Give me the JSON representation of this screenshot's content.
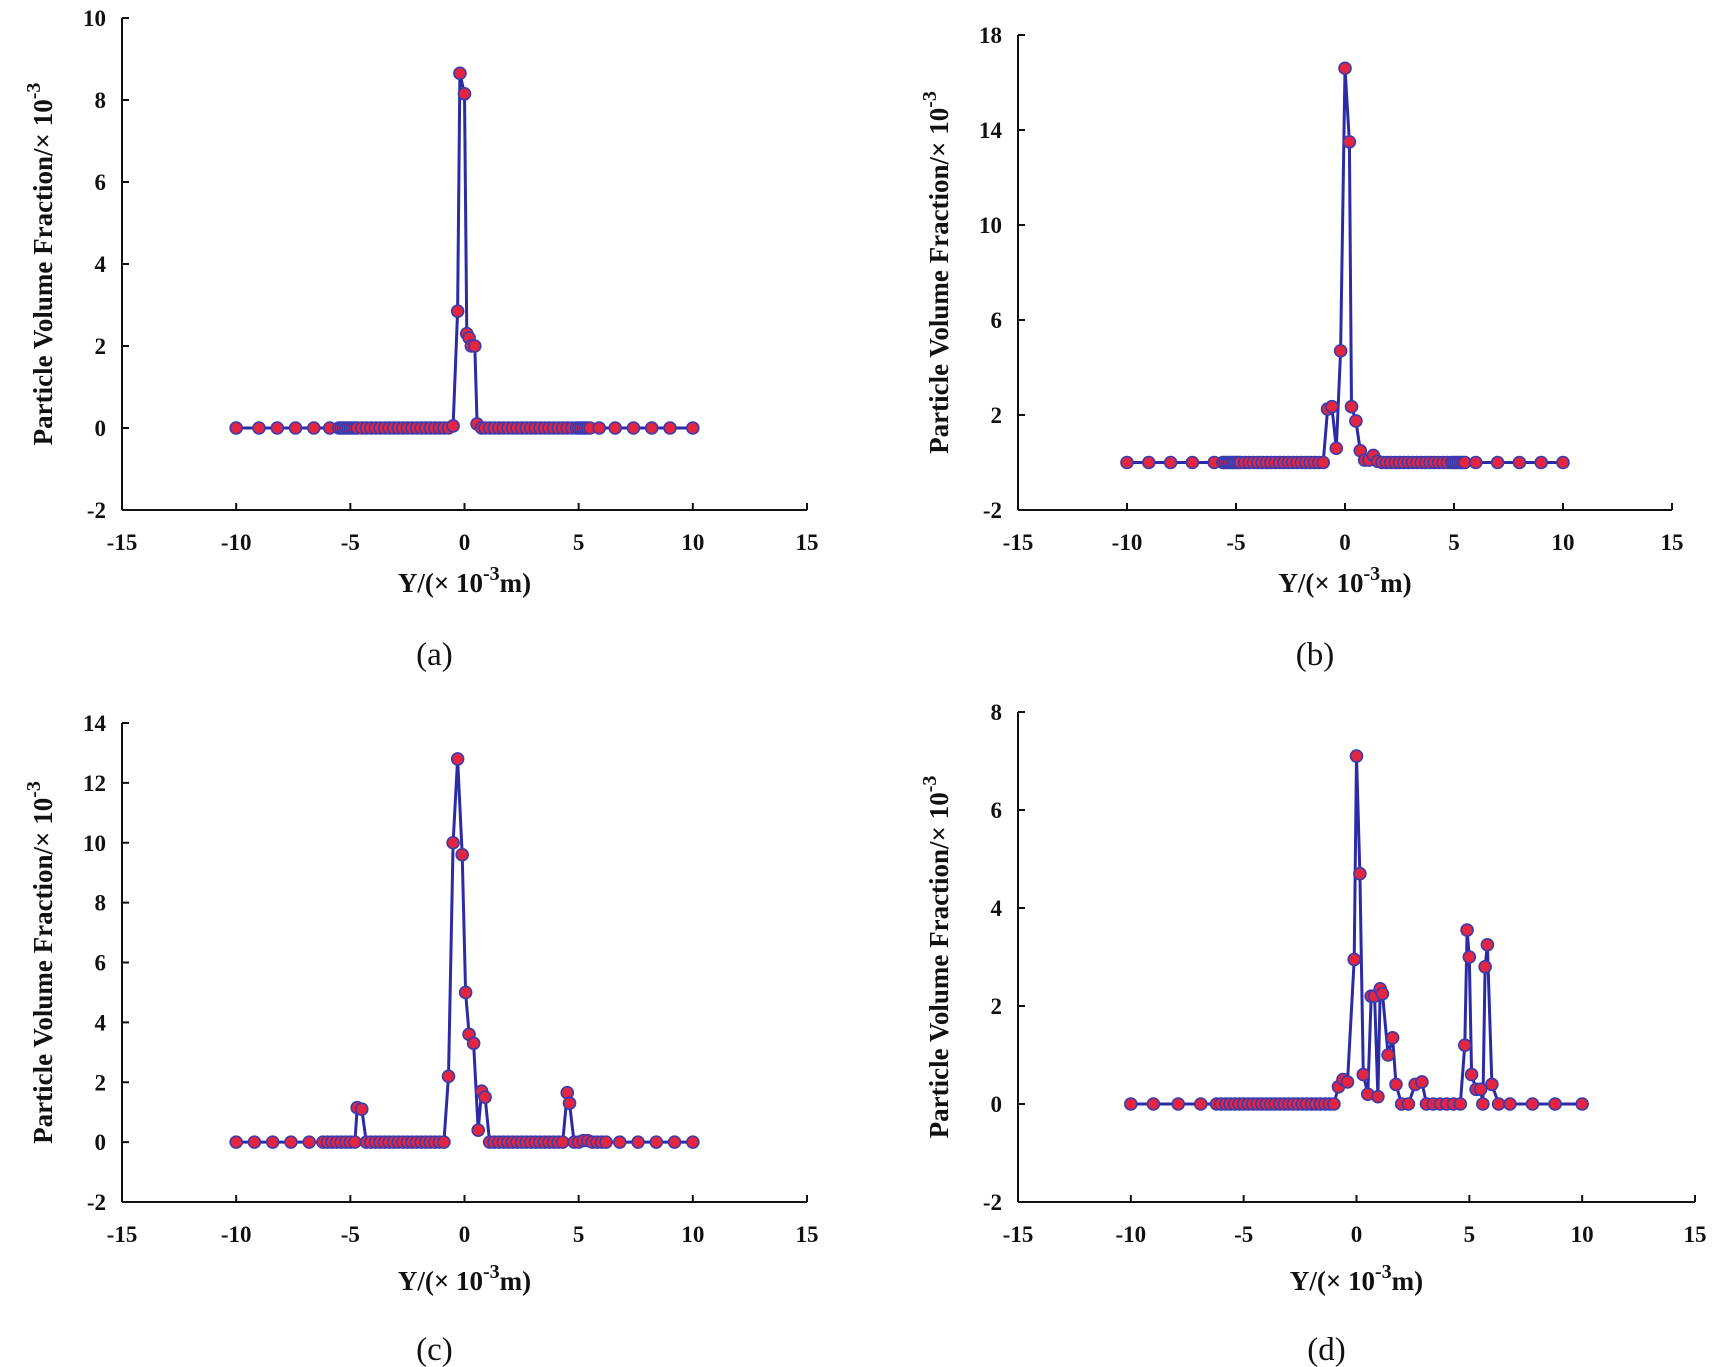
{
  "colors": {
    "line": "#2b2ba6",
    "marker_fill": "#e4253f",
    "marker_edge": "#3b3bb0",
    "axis": "#111111"
  },
  "chart_data": [
    {
      "type": "line",
      "caption": "(a)",
      "xlabel": "Y/(× 10-3m)",
      "xlabel_main": "Y/(× 10",
      "xlabel_exp": "-3",
      "xlabel_unit": "m)",
      "ylabel": "Particle Volume Fraction/× 10-3",
      "ylabel_main": "Particle Volume Fraction/× 10",
      "ylabel_exp": "-3",
      "xlim": [
        -15,
        15
      ],
      "ylim": [
        -2,
        10
      ],
      "xticks": [
        -15,
        -10,
        -5,
        0,
        5,
        10,
        15
      ],
      "yticks": [
        -2,
        0,
        2,
        4,
        6,
        8,
        10
      ],
      "x": [
        -10,
        -9,
        -8.2,
        -7.4,
        -6.6,
        -5.9,
        -5.5,
        -5.4,
        -5.3,
        -5.2,
        -5.1,
        -5.0,
        -4.9,
        -4.8,
        -4.7,
        -4.5,
        -4.3,
        -4.1,
        -3.9,
        -3.7,
        -3.5,
        -3.3,
        -3.1,
        -2.9,
        -2.7,
        -2.5,
        -2.3,
        -2.1,
        -1.9,
        -1.7,
        -1.5,
        -1.3,
        -1.1,
        -0.9,
        -0.7,
        -0.5,
        -0.3,
        -0.2,
        0,
        0.1,
        0.2,
        0.3,
        0.45,
        0.55,
        0.75,
        0.9,
        1.1,
        1.3,
        1.5,
        1.7,
        1.9,
        2.1,
        2.3,
        2.5,
        2.7,
        2.9,
        3.1,
        3.3,
        3.5,
        3.7,
        3.9,
        4.1,
        4.3,
        4.5,
        4.7,
        4.9,
        5.0,
        5.1,
        5.2,
        5.3,
        5.4,
        5.5,
        5.9,
        6.6,
        7.4,
        8.2,
        9,
        10
      ],
      "values": [
        0,
        0,
        0,
        0,
        0,
        0,
        0,
        0,
        0,
        0,
        0,
        0,
        0,
        0,
        0,
        0,
        0,
        0,
        0,
        0,
        0,
        0,
        0,
        0,
        0,
        0,
        0,
        0,
        0,
        0,
        0,
        0,
        0,
        0,
        0,
        0.05,
        2.85,
        8.65,
        8.15,
        2.3,
        2.2,
        2.0,
        2.0,
        0.1,
        0,
        0,
        0,
        0,
        0,
        0,
        0,
        0,
        0,
        0,
        0,
        0,
        0,
        0,
        0,
        0,
        0,
        0,
        0,
        0,
        0,
        0,
        0,
        0,
        0,
        0,
        0,
        0,
        0,
        0,
        0,
        0,
        0,
        0
      ]
    },
    {
      "type": "line",
      "caption": "(b)",
      "xlabel": "Y/(× 10-3m)",
      "xlabel_main": "Y/(× 10",
      "xlabel_exp": "-3",
      "xlabel_unit": "m)",
      "ylabel": "Particle Volume Fraction/× 10-3",
      "ylabel_main": "Particle Volume Fraction/× 10",
      "ylabel_exp": "-3",
      "xlim": [
        -15,
        15
      ],
      "ylim": [
        -2,
        18
      ],
      "xticks": [
        -15,
        -10,
        -5,
        0,
        5,
        10,
        15
      ],
      "yticks": [
        -2,
        2,
        6,
        10,
        14,
        18
      ],
      "x": [
        -10,
        -9,
        -8,
        -7,
        -6,
        -5.6,
        -5.5,
        -5.4,
        -5.3,
        -5.2,
        -5.1,
        -5.0,
        -4.9,
        -4.8,
        -4.6,
        -4.4,
        -4.2,
        -4.0,
        -3.8,
        -3.6,
        -3.4,
        -3.2,
        -3.0,
        -2.8,
        -2.6,
        -2.4,
        -2.2,
        -2.0,
        -1.8,
        -1.6,
        -1.4,
        -1.2,
        -1.0,
        -0.8,
        -0.6,
        -0.4,
        -0.2,
        0,
        0.2,
        0.3,
        0.5,
        0.7,
        0.9,
        1.1,
        1.3,
        1.5,
        1.7,
        1.9,
        2.1,
        2.3,
        2.5,
        2.7,
        2.9,
        3.1,
        3.3,
        3.5,
        3.7,
        3.9,
        4.1,
        4.3,
        4.5,
        4.7,
        4.9,
        5.0,
        5.1,
        5.2,
        5.3,
        5.4,
        5.5,
        6,
        7,
        8,
        9,
        10
      ],
      "values": [
        0,
        0,
        0,
        0,
        0,
        0,
        0,
        0,
        0,
        0,
        0,
        0,
        0,
        0,
        0,
        0,
        0,
        0,
        0,
        0,
        0,
        0,
        0,
        0,
        0,
        0,
        0,
        0,
        0,
        0,
        0,
        0,
        0,
        2.25,
        2.35,
        0.6,
        4.7,
        16.6,
        13.5,
        2.35,
        1.75,
        0.5,
        0.1,
        0.1,
        0.3,
        0.05,
        0,
        0,
        0,
        0,
        0,
        0,
        0,
        0,
        0,
        0,
        0,
        0,
        0,
        0,
        0,
        0,
        0,
        0,
        0,
        0,
        0,
        0,
        0,
        0,
        0,
        0,
        0,
        0
      ]
    },
    {
      "type": "line",
      "caption": "(c)",
      "xlabel": "Y/(× 10-3m)",
      "xlabel_main": "Y/(× 10",
      "xlabel_exp": "-3",
      "xlabel_unit": "m)",
      "ylabel": "Particle Volume Fraction/× 10-3",
      "ylabel_main": "Particle Volume Fraction/× 10",
      "ylabel_exp": "-3",
      "xlim": [
        -15,
        15
      ],
      "ylim": [
        -2,
        14
      ],
      "xticks": [
        -15,
        -10,
        -5,
        0,
        5,
        10,
        15
      ],
      "yticks": [
        -2,
        0,
        2,
        4,
        6,
        8,
        10,
        12,
        14
      ],
      "x": [
        -10,
        -9.2,
        -8.4,
        -7.6,
        -6.8,
        -6.2,
        -6.0,
        -5.8,
        -5.6,
        -5.4,
        -5.2,
        -5.0,
        -4.8,
        -4.7,
        -4.5,
        -4.3,
        -4.1,
        -3.9,
        -3.7,
        -3.5,
        -3.3,
        -3.1,
        -2.9,
        -2.7,
        -2.5,
        -2.3,
        -2.1,
        -1.9,
        -1.7,
        -1.5,
        -1.3,
        -1.1,
        -0.9,
        -0.7,
        -0.5,
        -0.3,
        -0.1,
        0.05,
        0.2,
        0.4,
        0.6,
        0.75,
        0.9,
        1.1,
        1.3,
        1.5,
        1.7,
        1.9,
        2.1,
        2.3,
        2.5,
        2.7,
        2.9,
        3.1,
        3.3,
        3.5,
        3.7,
        3.9,
        4.1,
        4.3,
        4.5,
        4.6,
        4.8,
        5.0,
        5.2,
        5.4,
        5.6,
        5.8,
        6.0,
        6.2,
        6.8,
        7.6,
        8.4,
        9.2,
        10
      ],
      "values": [
        0,
        0,
        0,
        0,
        0,
        0,
        0,
        0,
        0,
        0,
        0,
        0,
        0,
        1.15,
        1.1,
        0,
        0,
        0,
        0,
        0,
        0,
        0,
        0,
        0,
        0,
        0,
        0,
        0,
        0,
        0,
        0,
        0,
        0,
        2.2,
        10.0,
        12.8,
        9.6,
        5.0,
        3.6,
        3.3,
        0.4,
        1.7,
        1.5,
        0,
        0,
        0,
        0,
        0,
        0,
        0,
        0,
        0,
        0,
        0,
        0,
        0,
        0,
        0,
        0,
        0,
        1.65,
        1.3,
        0,
        0,
        0.05,
        0.05,
        0,
        0,
        0,
        0,
        0,
        0,
        0,
        0,
        0
      ]
    },
    {
      "type": "line",
      "caption": "(d)",
      "xlabel": "Y/(× 10-3m)",
      "xlabel_main": "Y/(× 10",
      "xlabel_exp": "-3",
      "xlabel_unit": "m)",
      "ylabel": "Particle Volume Fraction/× 10-3",
      "ylabel_main": "Particle Volume Fraction/× 10",
      "ylabel_exp": "-3",
      "xlim": [
        -15,
        15
      ],
      "ylim": [
        -2,
        8
      ],
      "xticks": [
        -15,
        -10,
        -5,
        0,
        5,
        10,
        15
      ],
      "yticks": [
        -2,
        0,
        2,
        4,
        6,
        8
      ],
      "x": [
        -10,
        -9,
        -7.9,
        -6.9,
        -6.2,
        -6.0,
        -5.8,
        -5.6,
        -5.4,
        -5.2,
        -5.0,
        -4.8,
        -4.6,
        -4.4,
        -4.2,
        -4.0,
        -3.8,
        -3.6,
        -3.4,
        -3.2,
        -3.0,
        -2.8,
        -2.6,
        -2.4,
        -2.2,
        -2.0,
        -1.8,
        -1.6,
        -1.4,
        -1.2,
        -1.0,
        -0.8,
        -0.6,
        -0.4,
        -0.1,
        0.0,
        0.15,
        0.3,
        0.5,
        0.65,
        0.8,
        0.95,
        1.05,
        1.15,
        1.4,
        1.6,
        1.75,
        2.0,
        2.3,
        2.6,
        2.9,
        3.1,
        3.4,
        3.7,
        4.0,
        4.3,
        4.6,
        4.8,
        4.9,
        5.0,
        5.1,
        5.3,
        5.5,
        5.6,
        5.7,
        5.8,
        6.0,
        6.3,
        6.8,
        7.8,
        8.8,
        10
      ],
      "values": [
        0,
        0,
        0,
        0,
        0,
        0,
        0,
        0,
        0,
        0,
        0,
        0,
        0,
        0,
        0,
        0,
        0,
        0,
        0,
        0,
        0,
        0,
        0,
        0,
        0,
        0,
        0,
        0,
        0,
        0,
        0,
        0.35,
        0.5,
        0.45,
        2.95,
        7.1,
        4.7,
        0.6,
        0.2,
        2.2,
        2.2,
        0.15,
        2.35,
        2.25,
        1.0,
        1.35,
        0.4,
        0,
        0,
        0.4,
        0.45,
        0,
        0,
        0,
        0,
        0,
        0,
        1.2,
        3.55,
        3.0,
        0.6,
        0.3,
        0.3,
        0,
        2.8,
        3.25,
        0.4,
        0,
        0,
        0,
        0,
        0
      ]
    }
  ]
}
